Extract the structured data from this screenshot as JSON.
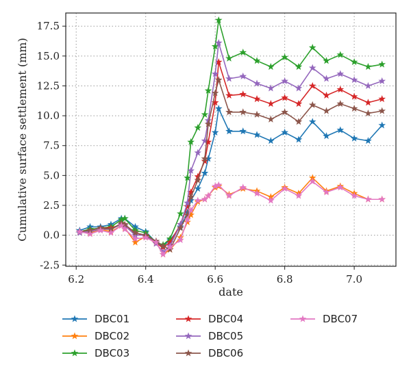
{
  "chart_data": {
    "type": "line",
    "title": "",
    "xlabel": "date",
    "ylabel": "Cumulative surface settlement (mm)",
    "xlim": [
      6.17,
      7.12
    ],
    "ylim": [
      -2.6,
      18.6
    ],
    "xticks": [
      6.2,
      6.4,
      6.6,
      6.8,
      7.0
    ],
    "xtick_labels": [
      "6.2",
      "6.4",
      "6.6",
      "6.8",
      "7.0"
    ],
    "yticks": [
      -2.5,
      0.0,
      2.5,
      5.0,
      7.5,
      10.0,
      12.5,
      15.0,
      17.5
    ],
    "ytick_labels": [
      "-2.5",
      "0.0",
      "2.5",
      "5.0",
      "7.5",
      "10.0",
      "12.5",
      "15.0",
      "17.5"
    ],
    "grid": true,
    "legend_position": "bottom",
    "x": [
      6.21,
      6.24,
      6.27,
      6.3,
      6.33,
      6.34,
      6.37,
      6.4,
      6.43,
      6.45,
      6.47,
      6.5,
      6.52,
      6.53,
      6.55,
      6.57,
      6.58,
      6.6,
      6.61,
      6.64,
      6.68,
      6.72,
      6.76,
      6.8,
      6.84,
      6.88,
      6.92,
      6.96,
      7.0,
      7.04,
      7.08
    ],
    "series": [
      {
        "name": "DBC01",
        "color": "#1f77b4",
        "values": [
          0.4,
          0.7,
          0.7,
          0.9,
          1.4,
          1.4,
          0.7,
          0.3,
          -0.6,
          -0.9,
          -0.4,
          0.7,
          1.9,
          2.9,
          3.9,
          5.2,
          6.4,
          8.6,
          10.6,
          8.7,
          8.7,
          8.4,
          7.9,
          8.6,
          8.0,
          9.5,
          8.3,
          8.8,
          8.1,
          7.9,
          9.2
        ]
      },
      {
        "name": "DBC02",
        "color": "#ff7f0e",
        "values": [
          0.3,
          0.2,
          0.5,
          0.3,
          0.8,
          0.6,
          -0.6,
          -0.1,
          -0.6,
          -1.6,
          -1.2,
          -0.2,
          1.1,
          1.7,
          2.8,
          3.0,
          3.3,
          4.0,
          4.1,
          3.4,
          3.9,
          3.7,
          3.2,
          4.0,
          3.5,
          4.8,
          3.7,
          4.1,
          3.5,
          3.0,
          3.0
        ]
      },
      {
        "name": "DBC03",
        "color": "#2ca02c",
        "values": [
          0.3,
          0.5,
          0.6,
          0.7,
          1.3,
          1.4,
          0.4,
          0.2,
          -0.6,
          -0.8,
          -0.3,
          1.8,
          4.8,
          7.8,
          9.0,
          10.1,
          12.1,
          15.8,
          18.0,
          14.8,
          15.3,
          14.6,
          14.1,
          14.9,
          14.1,
          15.7,
          14.6,
          15.1,
          14.5,
          14.1,
          14.3
        ]
      },
      {
        "name": "DBC04",
        "color": "#d62728",
        "values": [
          0.3,
          0.4,
          0.6,
          0.6,
          0.9,
          0.8,
          0.2,
          -0.1,
          -0.7,
          -1.0,
          -0.6,
          0.9,
          2.4,
          3.6,
          4.9,
          6.2,
          7.8,
          11.1,
          14.5,
          11.7,
          11.8,
          11.4,
          11.0,
          11.5,
          11.0,
          12.5,
          11.7,
          12.2,
          11.6,
          11.1,
          11.4
        ]
      },
      {
        "name": "DBC05",
        "color": "#9467bd",
        "values": [
          0.2,
          0.3,
          0.5,
          0.5,
          0.9,
          0.8,
          0.0,
          0.0,
          -0.7,
          -1.4,
          -0.9,
          0.9,
          2.7,
          5.4,
          6.9,
          7.9,
          9.6,
          13.5,
          16.1,
          13.1,
          13.3,
          12.7,
          12.3,
          12.9,
          12.3,
          14.0,
          13.1,
          13.5,
          13.0,
          12.5,
          12.9
        ]
      },
      {
        "name": "DBC06",
        "color": "#8c564b",
        "values": [
          0.3,
          0.4,
          0.6,
          0.5,
          1.0,
          0.9,
          0.2,
          0.0,
          -0.5,
          -0.9,
          -1.2,
          0.6,
          1.7,
          3.2,
          4.6,
          6.4,
          9.3,
          11.9,
          13.0,
          10.3,
          10.3,
          10.1,
          9.7,
          10.3,
          9.5,
          10.9,
          10.4,
          11.0,
          10.6,
          10.2,
          10.4
        ]
      },
      {
        "name": "DBC07",
        "color": "#e377c2",
        "values": [
          0.3,
          0.1,
          0.4,
          0.2,
          0.8,
          0.5,
          -0.3,
          -0.2,
          -0.6,
          -1.6,
          -1.0,
          -0.4,
          1.3,
          2.1,
          2.9,
          3.0,
          3.3,
          4.1,
          4.2,
          3.3,
          4.0,
          3.5,
          2.9,
          3.9,
          3.3,
          4.5,
          3.6,
          4.0,
          3.3,
          3.0,
          3.0
        ]
      }
    ]
  }
}
